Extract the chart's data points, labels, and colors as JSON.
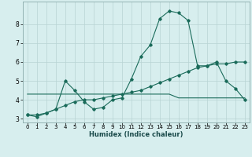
{
  "title": "",
  "xlabel": "Humidex (Indice chaleur)",
  "background_color": "#d7eeee",
  "grid_color": "#b8d4d4",
  "line_color": "#1a6b5a",
  "x_values": [
    0,
    1,
    2,
    3,
    4,
    5,
    6,
    7,
    8,
    9,
    10,
    11,
    12,
    13,
    14,
    15,
    16,
    17,
    18,
    19,
    20,
    21,
    22,
    23
  ],
  "line1": [
    3.2,
    3.1,
    3.3,
    3.5,
    5.0,
    4.5,
    3.9,
    3.5,
    3.6,
    4.0,
    4.1,
    5.1,
    6.3,
    6.9,
    8.3,
    8.7,
    8.6,
    8.2,
    5.8,
    5.8,
    6.0,
    5.0,
    4.6,
    4.0
  ],
  "line2": [
    4.3,
    4.3,
    4.3,
    4.3,
    4.3,
    4.3,
    4.3,
    4.3,
    4.3,
    4.3,
    4.3,
    4.3,
    4.3,
    4.3,
    4.3,
    4.3,
    4.1,
    4.1,
    4.1,
    4.1,
    4.1,
    4.1,
    4.1,
    4.1
  ],
  "line3": [
    3.2,
    3.2,
    3.3,
    3.5,
    3.7,
    3.9,
    4.0,
    4.0,
    4.1,
    4.2,
    4.3,
    4.4,
    4.5,
    4.7,
    4.9,
    5.1,
    5.3,
    5.5,
    5.7,
    5.8,
    5.9,
    5.9,
    6.0,
    6.0
  ],
  "ylim": [
    2.8,
    9.2
  ],
  "xlim": [
    -0.5,
    23.5
  ],
  "yticks": [
    3,
    4,
    5,
    6,
    7,
    8
  ],
  "xticks": [
    0,
    1,
    2,
    3,
    4,
    5,
    6,
    7,
    8,
    9,
    10,
    11,
    12,
    13,
    14,
    15,
    16,
    17,
    18,
    19,
    20,
    21,
    22,
    23
  ]
}
